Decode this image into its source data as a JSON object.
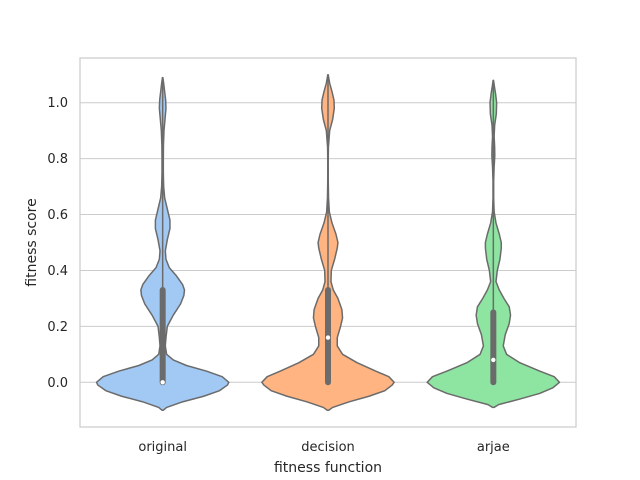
{
  "chart_data": {
    "type": "violin",
    "title": "",
    "xlabel": "fitness function",
    "ylabel": "fitness score",
    "categories": [
      "original",
      "decision",
      "arjae"
    ],
    "ylim": [
      -0.16,
      1.16
    ],
    "yticks": [
      0.0,
      0.2,
      0.4,
      0.6,
      0.8,
      1.0
    ],
    "ytick_labels": [
      "0.0",
      "0.2",
      "0.4",
      "0.6",
      "0.8",
      "1.0"
    ],
    "grid": "horizontal",
    "colors": {
      "original": "#a1c9f4",
      "decision": "#ffb482",
      "arjae": "#8de5a1",
      "outline": "#6b6b6b",
      "grid": "#cccccc",
      "frame": "#cccccc"
    },
    "series": [
      {
        "name": "original",
        "box": {
          "q1": 0.0,
          "median": 0.0,
          "q3": 0.33,
          "whisker_low": 0.0,
          "whisker_high": 1.09
        },
        "density": [
          [
            -0.1,
            0.01
          ],
          [
            -0.09,
            0.06
          ],
          [
            -0.07,
            0.3
          ],
          [
            -0.05,
            0.62
          ],
          [
            -0.03,
            0.86
          ],
          [
            -0.01,
            0.98
          ],
          [
            0.0,
            1.0
          ],
          [
            0.02,
            0.9
          ],
          [
            0.04,
            0.66
          ],
          [
            0.06,
            0.36
          ],
          [
            0.08,
            0.16
          ],
          [
            0.1,
            0.06
          ],
          [
            0.13,
            0.04
          ],
          [
            0.16,
            0.05
          ],
          [
            0.2,
            0.07
          ],
          [
            0.24,
            0.16
          ],
          [
            0.28,
            0.27
          ],
          [
            0.31,
            0.32
          ],
          [
            0.33,
            0.33
          ],
          [
            0.35,
            0.3
          ],
          [
            0.38,
            0.21
          ],
          [
            0.41,
            0.1
          ],
          [
            0.44,
            0.05
          ],
          [
            0.47,
            0.04
          ],
          [
            0.51,
            0.07
          ],
          [
            0.55,
            0.11
          ],
          [
            0.58,
            0.11
          ],
          [
            0.62,
            0.07
          ],
          [
            0.66,
            0.03
          ],
          [
            0.7,
            0.015
          ],
          [
            0.75,
            0.01
          ],
          [
            0.8,
            0.01
          ],
          [
            0.85,
            0.012
          ],
          [
            0.9,
            0.02
          ],
          [
            0.94,
            0.035
          ],
          [
            0.98,
            0.05
          ],
          [
            1.01,
            0.045
          ],
          [
            1.04,
            0.03
          ],
          [
            1.07,
            0.015
          ],
          [
            1.09,
            0.003
          ]
        ]
      },
      {
        "name": "decision",
        "box": {
          "q1": 0.0,
          "median": 0.16,
          "q3": 0.33,
          "whisker_low": 0.0,
          "whisker_high": 1.1
        },
        "density": [
          [
            -0.1,
            0.01
          ],
          [
            -0.09,
            0.07
          ],
          [
            -0.07,
            0.32
          ],
          [
            -0.05,
            0.62
          ],
          [
            -0.03,
            0.86
          ],
          [
            -0.01,
            0.97
          ],
          [
            0.0,
            1.0
          ],
          [
            0.02,
            0.92
          ],
          [
            0.04,
            0.72
          ],
          [
            0.07,
            0.44
          ],
          [
            0.1,
            0.22
          ],
          [
            0.13,
            0.14
          ],
          [
            0.16,
            0.14
          ],
          [
            0.2,
            0.19
          ],
          [
            0.23,
            0.22
          ],
          [
            0.26,
            0.21
          ],
          [
            0.3,
            0.15
          ],
          [
            0.33,
            0.08
          ],
          [
            0.36,
            0.045
          ],
          [
            0.4,
            0.05
          ],
          [
            0.44,
            0.1
          ],
          [
            0.48,
            0.14
          ],
          [
            0.5,
            0.15
          ],
          [
            0.53,
            0.12
          ],
          [
            0.57,
            0.06
          ],
          [
            0.61,
            0.02
          ],
          [
            0.66,
            0.008
          ],
          [
            0.72,
            0.004
          ],
          [
            0.78,
            0.003
          ],
          [
            0.84,
            0.006
          ],
          [
            0.9,
            0.025
          ],
          [
            0.94,
            0.07
          ],
          [
            0.98,
            0.095
          ],
          [
            1.01,
            0.09
          ],
          [
            1.04,
            0.06
          ],
          [
            1.07,
            0.025
          ],
          [
            1.1,
            0.003
          ]
        ]
      },
      {
        "name": "arjae",
        "box": {
          "q1": 0.0,
          "median": 0.08,
          "q3": 0.25,
          "whisker_low": 0.0,
          "whisker_high": 1.08
        },
        "density": [
          [
            -0.09,
            0.01
          ],
          [
            -0.08,
            0.08
          ],
          [
            -0.06,
            0.4
          ],
          [
            -0.04,
            0.7
          ],
          [
            -0.02,
            0.9
          ],
          [
            0.0,
            1.0
          ],
          [
            0.02,
            0.92
          ],
          [
            0.04,
            0.7
          ],
          [
            0.07,
            0.4
          ],
          [
            0.1,
            0.2
          ],
          [
            0.13,
            0.15
          ],
          [
            0.17,
            0.18
          ],
          [
            0.21,
            0.24
          ],
          [
            0.24,
            0.26
          ],
          [
            0.27,
            0.24
          ],
          [
            0.3,
            0.16
          ],
          [
            0.33,
            0.09
          ],
          [
            0.36,
            0.04
          ],
          [
            0.4,
            0.06
          ],
          [
            0.44,
            0.1
          ],
          [
            0.48,
            0.12
          ],
          [
            0.5,
            0.12
          ],
          [
            0.53,
            0.09
          ],
          [
            0.57,
            0.04
          ],
          [
            0.61,
            0.012
          ],
          [
            0.66,
            0.005
          ],
          [
            0.72,
            0.005
          ],
          [
            0.77,
            0.012
          ],
          [
            0.81,
            0.022
          ],
          [
            0.84,
            0.02
          ],
          [
            0.88,
            0.012
          ],
          [
            0.92,
            0.02
          ],
          [
            0.96,
            0.045
          ],
          [
            1.0,
            0.05
          ],
          [
            1.03,
            0.035
          ],
          [
            1.06,
            0.015
          ],
          [
            1.08,
            0.003
          ]
        ]
      }
    ]
  }
}
